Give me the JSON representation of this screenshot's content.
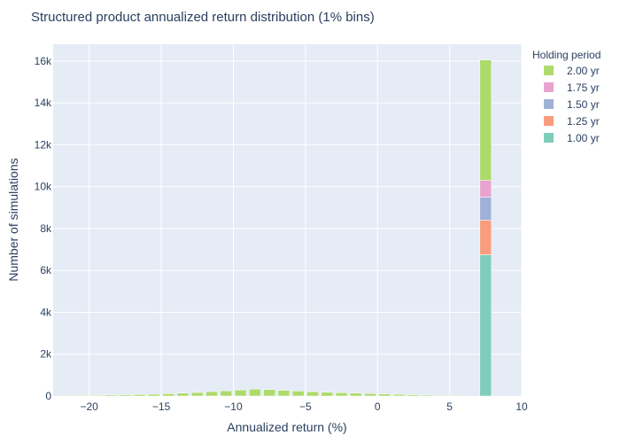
{
  "chart_data": {
    "type": "bar",
    "barmode": "stack",
    "title": "Structured product annualized return distribution (1% bins)",
    "xlabel": "Annualized return (%)",
    "ylabel": "Number of simulations",
    "xlim": [
      -22.5,
      10
    ],
    "ylim": [
      0,
      16800
    ],
    "xticks": [
      -20,
      -15,
      -10,
      -5,
      0,
      5,
      10
    ],
    "xtick_labels": [
      "−20",
      "−15",
      "−10",
      "−5",
      "0",
      "5",
      "10"
    ],
    "yticks": [
      0,
      2000,
      4000,
      6000,
      8000,
      10000,
      12000,
      14000,
      16000
    ],
    "ytick_labels": [
      "0",
      "2k",
      "4k",
      "6k",
      "8k",
      "10k",
      "12k",
      "14k",
      "16k"
    ],
    "bin_width": 1,
    "grid": true,
    "legend": {
      "title": "Holding period",
      "placement": "top-right"
    },
    "x": [
      -21.5,
      -20.5,
      -19.5,
      -18.5,
      -17.5,
      -16.5,
      -15.5,
      -14.5,
      -13.5,
      -12.5,
      -11.5,
      -10.5,
      -9.5,
      -8.5,
      -7.5,
      -6.5,
      -5.5,
      -4.5,
      -3.5,
      -2.5,
      -1.5,
      -0.5,
      0.5,
      1.5,
      2.5,
      3.5,
      4.5,
      5.5,
      7.5
    ],
    "series": [
      {
        "name": "1.00 yr",
        "color": "#7fcdbb",
        "values": [
          0,
          0,
          0,
          0,
          0,
          0,
          0,
          0,
          0,
          0,
          0,
          0,
          0,
          0,
          0,
          0,
          0,
          0,
          0,
          0,
          0,
          0,
          0,
          0,
          0,
          0,
          0,
          0,
          6750
        ]
      },
      {
        "name": "1.25 yr",
        "color": "#f89d7e",
        "values": [
          0,
          0,
          0,
          0,
          0,
          0,
          0,
          0,
          0,
          0,
          0,
          0,
          0,
          0,
          0,
          0,
          0,
          0,
          0,
          0,
          0,
          0,
          0,
          0,
          0,
          0,
          0,
          0,
          1650
        ]
      },
      {
        "name": "1.50 yr",
        "color": "#a0b0d6",
        "values": [
          0,
          0,
          0,
          0,
          0,
          0,
          0,
          0,
          0,
          0,
          0,
          0,
          0,
          0,
          0,
          0,
          0,
          0,
          0,
          0,
          0,
          0,
          0,
          0,
          0,
          0,
          0,
          0,
          1100
        ]
      },
      {
        "name": "1.75 yr",
        "color": "#e9a3cf",
        "values": [
          0,
          0,
          0,
          0,
          0,
          0,
          0,
          0,
          0,
          0,
          0,
          0,
          0,
          0,
          0,
          0,
          0,
          0,
          0,
          0,
          0,
          0,
          0,
          0,
          0,
          0,
          0,
          0,
          800
        ]
      },
      {
        "name": "2.00 yr",
        "color": "#addb6b",
        "values": [
          30,
          35,
          40,
          50,
          60,
          70,
          85,
          110,
          140,
          170,
          210,
          250,
          290,
          330,
          310,
          270,
          240,
          210,
          180,
          160,
          140,
          120,
          100,
          80,
          60,
          45,
          30,
          20,
          5750
        ]
      }
    ]
  }
}
